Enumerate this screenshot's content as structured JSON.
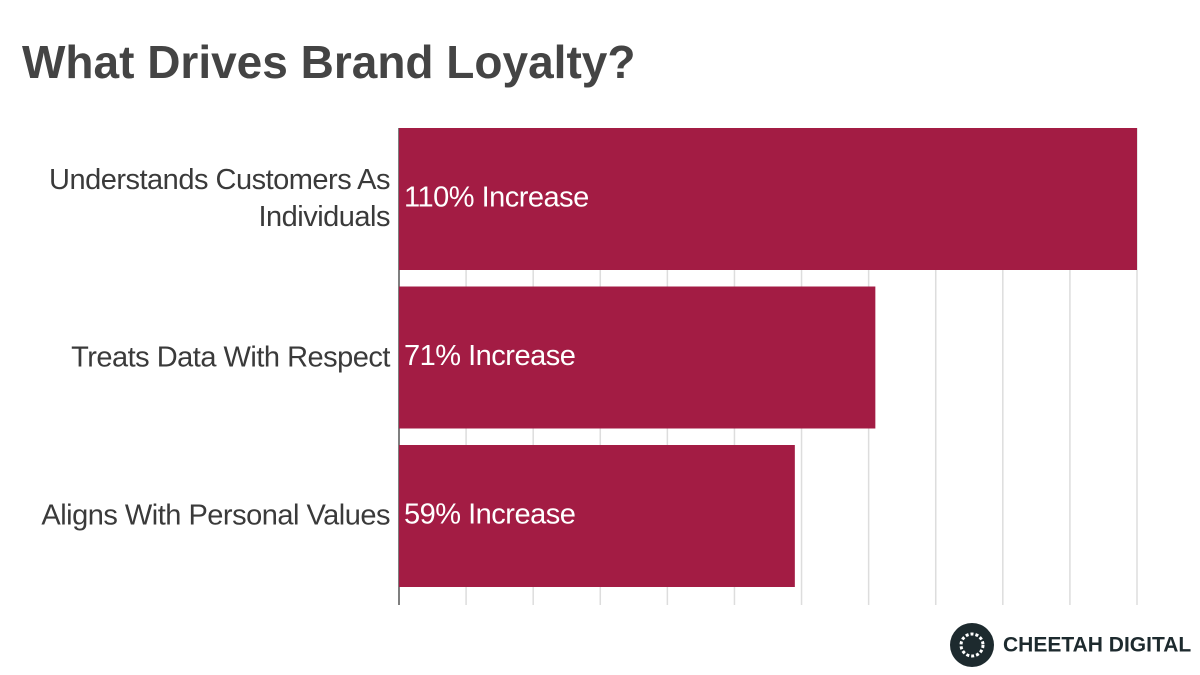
{
  "chart_data": {
    "type": "bar",
    "orientation": "horizontal",
    "title": "What Drives Brand Loyalty?",
    "categories": [
      "Understands Customers As Individuals",
      "Treats Data With Respect",
      "Aligns With Personal Values"
    ],
    "values": [
      110,
      71,
      59
    ],
    "value_labels": [
      "110% Increase",
      "71% Increase",
      "59% Increase"
    ],
    "color": "#a31c44",
    "xlim": [
      0,
      110
    ],
    "xticks": [
      0,
      10,
      20,
      30,
      40,
      50,
      60,
      70,
      80,
      90,
      100,
      110
    ],
    "grid": true,
    "brand": "CHEETAH DIGITAL"
  }
}
